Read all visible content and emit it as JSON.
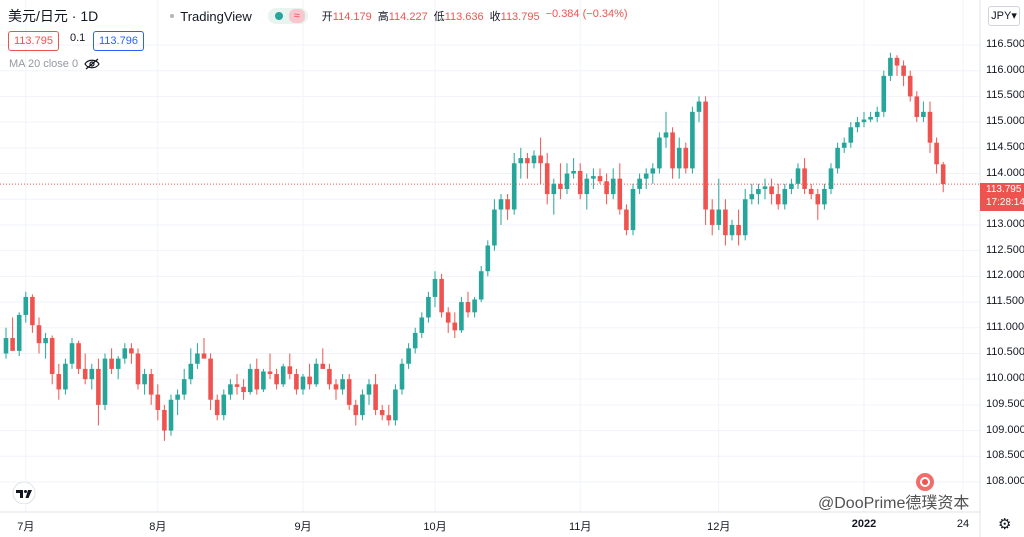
{
  "header": {
    "symbol": "美元/日元 · 1D",
    "brand": "TradingView",
    "status_icon": "≈",
    "ohlc": [
      {
        "label": "开",
        "value": "114.179"
      },
      {
        "label": "高",
        "value": "114.227"
      },
      {
        "label": "低",
        "value": "113.636"
      },
      {
        "label": "收",
        "value": "113.795"
      }
    ],
    "change": "−0.384 (−0.34%)"
  },
  "quote": {
    "bid": "113.795",
    "spread": "0.1",
    "ask": "113.796"
  },
  "indicator": {
    "label": "MA 20 close 0"
  },
  "currency_button": "JPY",
  "last_price": {
    "value": "113.795",
    "countdown": "17:28:14"
  },
  "watermark": "@DooPrime德璞资本",
  "colors": {
    "up": "#26a69a",
    "down": "#ef5350",
    "grid": "#f0f3fa",
    "last_line": "#ef5350"
  },
  "chart_data": {
    "type": "candlestick",
    "xlabel": "",
    "ylabel": "",
    "ylim": [
      108.0,
      116.75
    ],
    "yticks": [
      "116.500",
      "116.000",
      "115.500",
      "115.000",
      "114.500",
      "114.000",
      "113.500",
      "113.000",
      "112.500",
      "112.000",
      "111.500",
      "111.000",
      "110.500",
      "110.000",
      "109.500",
      "109.000",
      "108.500",
      "108.000"
    ],
    "xticks": [
      {
        "label": "7月",
        "bold": false,
        "day": 3
      },
      {
        "label": "8月",
        "bold": false,
        "day": 23
      },
      {
        "label": "9月",
        "bold": false,
        "day": 45
      },
      {
        "label": "10月",
        "bold": false,
        "day": 65
      },
      {
        "label": "11月",
        "bold": false,
        "day": 87
      },
      {
        "label": "12月",
        "bold": false,
        "day": 108
      },
      {
        "label": "2022",
        "bold": true,
        "day": 130
      },
      {
        "label": "24",
        "bold": false,
        "day": 145
      }
    ],
    "last_close": 113.795,
    "candles": [
      {
        "o": 110.5,
        "h": 111.0,
        "l": 110.4,
        "c": 110.8
      },
      {
        "o": 110.8,
        "h": 111.2,
        "l": 110.6,
        "c": 110.55
      },
      {
        "o": 110.55,
        "h": 111.3,
        "l": 110.45,
        "c": 111.25
      },
      {
        "o": 111.25,
        "h": 111.7,
        "l": 111.1,
        "c": 111.6
      },
      {
        "o": 111.6,
        "h": 111.65,
        "l": 110.9,
        "c": 111.05
      },
      {
        "o": 111.05,
        "h": 111.2,
        "l": 110.5,
        "c": 110.7
      },
      {
        "o": 110.7,
        "h": 110.9,
        "l": 110.4,
        "c": 110.8
      },
      {
        "o": 110.8,
        "h": 110.85,
        "l": 109.9,
        "c": 110.1
      },
      {
        "o": 110.1,
        "h": 110.3,
        "l": 109.6,
        "c": 109.8
      },
      {
        "o": 109.8,
        "h": 110.4,
        "l": 109.7,
        "c": 110.3
      },
      {
        "o": 110.3,
        "h": 110.8,
        "l": 110.2,
        "c": 110.7
      },
      {
        "o": 110.7,
        "h": 110.75,
        "l": 110.1,
        "c": 110.2
      },
      {
        "o": 110.2,
        "h": 110.5,
        "l": 109.9,
        "c": 110.0
      },
      {
        "o": 110.0,
        "h": 110.3,
        "l": 109.8,
        "c": 110.2
      },
      {
        "o": 110.2,
        "h": 110.4,
        "l": 109.1,
        "c": 109.5
      },
      {
        "o": 109.5,
        "h": 110.5,
        "l": 109.4,
        "c": 110.4
      },
      {
        "o": 110.4,
        "h": 110.6,
        "l": 110.1,
        "c": 110.2
      },
      {
        "o": 110.2,
        "h": 110.45,
        "l": 110.0,
        "c": 110.4
      },
      {
        "o": 110.4,
        "h": 110.7,
        "l": 110.3,
        "c": 110.6
      },
      {
        "o": 110.6,
        "h": 110.7,
        "l": 110.3,
        "c": 110.5
      },
      {
        "o": 110.5,
        "h": 110.6,
        "l": 109.8,
        "c": 109.9
      },
      {
        "o": 109.9,
        "h": 110.2,
        "l": 109.7,
        "c": 110.1
      },
      {
        "o": 110.1,
        "h": 110.2,
        "l": 109.5,
        "c": 109.7
      },
      {
        "o": 109.7,
        "h": 109.9,
        "l": 109.2,
        "c": 109.4
      },
      {
        "o": 109.4,
        "h": 109.5,
        "l": 108.8,
        "c": 109.0
      },
      {
        "o": 109.0,
        "h": 109.7,
        "l": 108.9,
        "c": 109.6
      },
      {
        "o": 109.6,
        "h": 109.8,
        "l": 109.3,
        "c": 109.7
      },
      {
        "o": 109.7,
        "h": 110.2,
        "l": 109.6,
        "c": 110.0
      },
      {
        "o": 110.0,
        "h": 110.6,
        "l": 109.9,
        "c": 110.3
      },
      {
        "o": 110.3,
        "h": 110.7,
        "l": 110.2,
        "c": 110.5
      },
      {
        "o": 110.5,
        "h": 110.8,
        "l": 110.4,
        "c": 110.4
      },
      {
        "o": 110.4,
        "h": 110.5,
        "l": 109.4,
        "c": 109.6
      },
      {
        "o": 109.6,
        "h": 109.7,
        "l": 109.2,
        "c": 109.3
      },
      {
        "o": 109.3,
        "h": 109.8,
        "l": 109.2,
        "c": 109.7
      },
      {
        "o": 109.7,
        "h": 110.0,
        "l": 109.6,
        "c": 109.9
      },
      {
        "o": 109.9,
        "h": 110.1,
        "l": 109.7,
        "c": 109.85
      },
      {
        "o": 109.85,
        "h": 110.0,
        "l": 109.6,
        "c": 109.75
      },
      {
        "o": 109.75,
        "h": 110.3,
        "l": 109.7,
        "c": 110.2
      },
      {
        "o": 110.2,
        "h": 110.4,
        "l": 109.7,
        "c": 109.8
      },
      {
        "o": 109.8,
        "h": 110.2,
        "l": 109.75,
        "c": 110.15
      },
      {
        "o": 110.15,
        "h": 110.5,
        "l": 110.0,
        "c": 110.1
      },
      {
        "o": 110.1,
        "h": 110.2,
        "l": 109.8,
        "c": 109.9
      },
      {
        "o": 109.9,
        "h": 110.3,
        "l": 109.85,
        "c": 110.25
      },
      {
        "o": 110.25,
        "h": 110.5,
        "l": 110.0,
        "c": 110.1
      },
      {
        "o": 110.1,
        "h": 110.2,
        "l": 109.7,
        "c": 109.8
      },
      {
        "o": 109.8,
        "h": 110.1,
        "l": 109.7,
        "c": 110.05
      },
      {
        "o": 110.05,
        "h": 110.3,
        "l": 109.8,
        "c": 109.9
      },
      {
        "o": 109.9,
        "h": 110.4,
        "l": 109.85,
        "c": 110.3
      },
      {
        "o": 110.3,
        "h": 110.6,
        "l": 110.2,
        "c": 110.2
      },
      {
        "o": 110.2,
        "h": 110.3,
        "l": 109.8,
        "c": 109.9
      },
      {
        "o": 109.9,
        "h": 110.0,
        "l": 109.6,
        "c": 109.8
      },
      {
        "o": 109.8,
        "h": 110.1,
        "l": 109.7,
        "c": 110.0
      },
      {
        "o": 110.0,
        "h": 110.1,
        "l": 109.4,
        "c": 109.5
      },
      {
        "o": 109.5,
        "h": 109.6,
        "l": 109.1,
        "c": 109.3
      },
      {
        "o": 109.3,
        "h": 109.8,
        "l": 109.2,
        "c": 109.7
      },
      {
        "o": 109.7,
        "h": 110.0,
        "l": 109.5,
        "c": 109.9
      },
      {
        "o": 109.9,
        "h": 110.1,
        "l": 109.3,
        "c": 109.4
      },
      {
        "o": 109.4,
        "h": 109.5,
        "l": 109.2,
        "c": 109.3
      },
      {
        "o": 109.3,
        "h": 109.5,
        "l": 109.1,
        "c": 109.2
      },
      {
        "o": 109.2,
        "h": 109.9,
        "l": 109.1,
        "c": 109.8
      },
      {
        "o": 109.8,
        "h": 110.4,
        "l": 109.7,
        "c": 110.3
      },
      {
        "o": 110.3,
        "h": 110.7,
        "l": 110.2,
        "c": 110.6
      },
      {
        "o": 110.6,
        "h": 111.0,
        "l": 110.5,
        "c": 110.9
      },
      {
        "o": 110.9,
        "h": 111.3,
        "l": 110.8,
        "c": 111.2
      },
      {
        "o": 111.2,
        "h": 111.7,
        "l": 111.1,
        "c": 111.6
      },
      {
        "o": 111.6,
        "h": 112.1,
        "l": 111.4,
        "c": 111.95
      },
      {
        "o": 111.95,
        "h": 112.05,
        "l": 111.2,
        "c": 111.3
      },
      {
        "o": 111.3,
        "h": 111.4,
        "l": 110.9,
        "c": 111.1
      },
      {
        "o": 111.1,
        "h": 111.3,
        "l": 110.8,
        "c": 110.95
      },
      {
        "o": 110.95,
        "h": 111.6,
        "l": 110.9,
        "c": 111.5
      },
      {
        "o": 111.5,
        "h": 111.7,
        "l": 111.2,
        "c": 111.3
      },
      {
        "o": 111.3,
        "h": 111.6,
        "l": 111.2,
        "c": 111.55
      },
      {
        "o": 111.55,
        "h": 112.2,
        "l": 111.5,
        "c": 112.1
      },
      {
        "o": 112.1,
        "h": 112.7,
        "l": 112.0,
        "c": 112.6
      },
      {
        "o": 112.6,
        "h": 113.5,
        "l": 112.5,
        "c": 113.3
      },
      {
        "o": 113.3,
        "h": 113.6,
        "l": 113.0,
        "c": 113.5
      },
      {
        "o": 113.5,
        "h": 113.6,
        "l": 113.1,
        "c": 113.3
      },
      {
        "o": 113.3,
        "h": 114.4,
        "l": 113.2,
        "c": 114.2
      },
      {
        "o": 114.2,
        "h": 114.5,
        "l": 113.9,
        "c": 114.3
      },
      {
        "o": 114.3,
        "h": 114.4,
        "l": 113.9,
        "c": 114.2
      },
      {
        "o": 114.2,
        "h": 114.45,
        "l": 114.1,
        "c": 114.35
      },
      {
        "o": 114.35,
        "h": 114.7,
        "l": 113.8,
        "c": 114.2
      },
      {
        "o": 114.2,
        "h": 114.4,
        "l": 113.4,
        "c": 113.6
      },
      {
        "o": 113.6,
        "h": 113.9,
        "l": 113.2,
        "c": 113.8
      },
      {
        "o": 113.8,
        "h": 114.2,
        "l": 113.5,
        "c": 113.7
      },
      {
        "o": 113.7,
        "h": 114.2,
        "l": 113.6,
        "c": 114.0
      },
      {
        "o": 114.0,
        "h": 114.3,
        "l": 113.9,
        "c": 114.05
      },
      {
        "o": 114.05,
        "h": 114.2,
        "l": 113.5,
        "c": 113.6
      },
      {
        "o": 113.6,
        "h": 114.0,
        "l": 113.3,
        "c": 113.9
      },
      {
        "o": 113.9,
        "h": 114.1,
        "l": 113.7,
        "c": 113.95
      },
      {
        "o": 113.95,
        "h": 114.1,
        "l": 113.8,
        "c": 113.85
      },
      {
        "o": 113.85,
        "h": 114.0,
        "l": 113.4,
        "c": 113.6
      },
      {
        "o": 113.6,
        "h": 114.1,
        "l": 113.5,
        "c": 113.9
      },
      {
        "o": 113.9,
        "h": 114.2,
        "l": 113.2,
        "c": 113.3
      },
      {
        "o": 113.3,
        "h": 113.4,
        "l": 112.8,
        "c": 112.9
      },
      {
        "o": 112.9,
        "h": 113.8,
        "l": 112.8,
        "c": 113.7
      },
      {
        "o": 113.7,
        "h": 114.0,
        "l": 113.6,
        "c": 113.9
      },
      {
        "o": 113.9,
        "h": 114.1,
        "l": 113.7,
        "c": 114.0
      },
      {
        "o": 114.0,
        "h": 114.2,
        "l": 113.8,
        "c": 114.1
      },
      {
        "o": 114.1,
        "h": 114.8,
        "l": 114.0,
        "c": 114.7
      },
      {
        "o": 114.7,
        "h": 115.2,
        "l": 114.5,
        "c": 114.8
      },
      {
        "o": 114.8,
        "h": 114.9,
        "l": 113.9,
        "c": 114.1
      },
      {
        "o": 114.1,
        "h": 114.7,
        "l": 113.9,
        "c": 114.5
      },
      {
        "o": 114.5,
        "h": 114.6,
        "l": 114.0,
        "c": 114.1
      },
      {
        "o": 114.1,
        "h": 115.3,
        "l": 114.0,
        "c": 115.2
      },
      {
        "o": 115.2,
        "h": 115.5,
        "l": 115.0,
        "c": 115.4
      },
      {
        "o": 115.4,
        "h": 115.5,
        "l": 113.0,
        "c": 113.3
      },
      {
        "o": 113.3,
        "h": 113.5,
        "l": 112.8,
        "c": 113.0
      },
      {
        "o": 113.0,
        "h": 113.9,
        "l": 112.9,
        "c": 113.3
      },
      {
        "o": 113.3,
        "h": 113.5,
        "l": 112.6,
        "c": 112.8
      },
      {
        "o": 112.8,
        "h": 113.1,
        "l": 112.7,
        "c": 113.0
      },
      {
        "o": 113.0,
        "h": 113.3,
        "l": 112.6,
        "c": 112.8
      },
      {
        "o": 112.8,
        "h": 113.7,
        "l": 112.7,
        "c": 113.5
      },
      {
        "o": 113.5,
        "h": 113.8,
        "l": 113.4,
        "c": 113.6
      },
      {
        "o": 113.6,
        "h": 113.8,
        "l": 113.4,
        "c": 113.7
      },
      {
        "o": 113.7,
        "h": 113.9,
        "l": 113.5,
        "c": 113.75
      },
      {
        "o": 113.75,
        "h": 113.9,
        "l": 113.4,
        "c": 113.6
      },
      {
        "o": 113.6,
        "h": 113.8,
        "l": 113.3,
        "c": 113.4
      },
      {
        "o": 113.4,
        "h": 113.8,
        "l": 113.3,
        "c": 113.7
      },
      {
        "o": 113.7,
        "h": 113.9,
        "l": 113.6,
        "c": 113.8
      },
      {
        "o": 113.8,
        "h": 114.2,
        "l": 113.7,
        "c": 114.1
      },
      {
        "o": 114.1,
        "h": 114.3,
        "l": 113.6,
        "c": 113.7
      },
      {
        "o": 113.7,
        "h": 113.8,
        "l": 113.5,
        "c": 113.6
      },
      {
        "o": 113.6,
        "h": 113.7,
        "l": 113.1,
        "c": 113.4
      },
      {
        "o": 113.4,
        "h": 113.8,
        "l": 113.3,
        "c": 113.7
      },
      {
        "o": 113.7,
        "h": 114.2,
        "l": 113.6,
        "c": 114.1
      },
      {
        "o": 114.1,
        "h": 114.6,
        "l": 114.0,
        "c": 114.5
      },
      {
        "o": 114.5,
        "h": 114.7,
        "l": 114.4,
        "c": 114.6
      },
      {
        "o": 114.6,
        "h": 115.0,
        "l": 114.5,
        "c": 114.9
      },
      {
        "o": 114.9,
        "h": 115.1,
        "l": 114.8,
        "c": 115.0
      },
      {
        "o": 115.0,
        "h": 115.2,
        "l": 114.9,
        "c": 115.05
      },
      {
        "o": 115.05,
        "h": 115.2,
        "l": 115.0,
        "c": 115.1
      },
      {
        "o": 115.1,
        "h": 115.3,
        "l": 115.0,
        "c": 115.2
      },
      {
        "o": 115.2,
        "h": 116.0,
        "l": 115.1,
        "c": 115.9
      },
      {
        "o": 115.9,
        "h": 116.35,
        "l": 115.8,
        "c": 116.25
      },
      {
        "o": 116.25,
        "h": 116.3,
        "l": 115.9,
        "c": 116.1
      },
      {
        "o": 116.1,
        "h": 116.2,
        "l": 115.7,
        "c": 115.9
      },
      {
        "o": 115.9,
        "h": 116.0,
        "l": 115.4,
        "c": 115.5
      },
      {
        "o": 115.5,
        "h": 115.6,
        "l": 115.0,
        "c": 115.1
      },
      {
        "o": 115.1,
        "h": 115.4,
        "l": 115.0,
        "c": 115.2
      },
      {
        "o": 115.2,
        "h": 115.4,
        "l": 114.4,
        "c": 114.6
      },
      {
        "o": 114.6,
        "h": 114.7,
        "l": 114.0,
        "c": 114.18
      },
      {
        "o": 114.179,
        "h": 114.227,
        "l": 113.636,
        "c": 113.795
      }
    ]
  }
}
